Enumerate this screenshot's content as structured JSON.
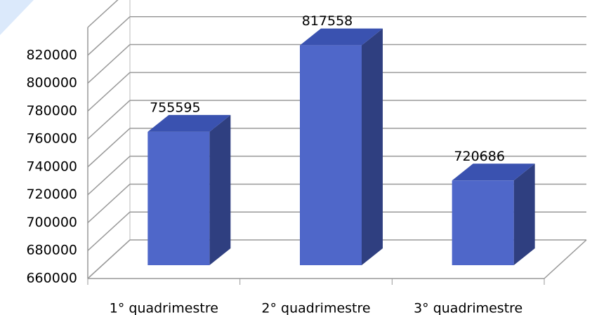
{
  "chart_data": {
    "type": "bar3d",
    "categories": [
      "1° quadrimestre",
      "2° quadrimestre",
      "3° quadrimestre"
    ],
    "values": [
      755595,
      817558,
      720686
    ],
    "color": "#4f67c9",
    "ylim": [
      660000,
      840000
    ],
    "yticks": [
      660000,
      680000,
      700000,
      720000,
      740000,
      760000,
      780000,
      800000,
      820000
    ],
    "grid": true
  }
}
